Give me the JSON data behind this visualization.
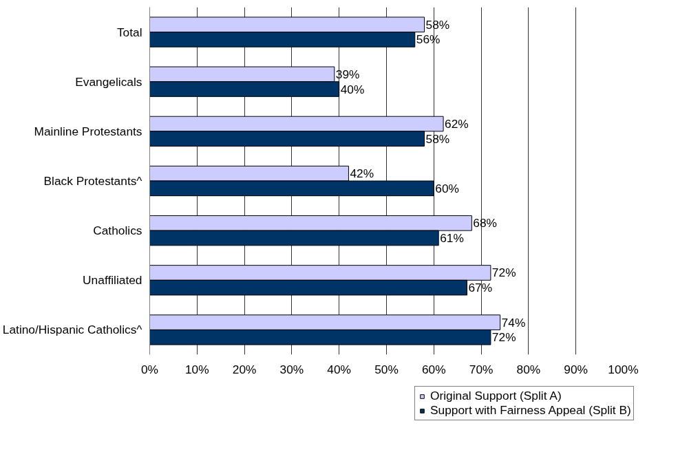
{
  "chart_data": {
    "type": "bar",
    "orientation": "horizontal",
    "categories": [
      "Total",
      "Evangelicals",
      "Mainline Protestants",
      "Black Protestants^",
      "Catholics",
      "Unaffiliated",
      "Latino/Hispanic Catholics^"
    ],
    "series": [
      {
        "name": "Original Support (Split A)",
        "color": "#ccccff",
        "values": [
          58,
          39,
          62,
          42,
          68,
          72,
          74
        ],
        "value_labels": [
          "58%",
          "39%",
          "62%",
          "42%",
          "68%",
          "72%",
          "74%"
        ]
      },
      {
        "name": "Support with Fairness Appeal (Split B)",
        "color": "#003366",
        "values": [
          56,
          40,
          58,
          60,
          61,
          67,
          72
        ],
        "value_labels": [
          "56%",
          "40%",
          "58%",
          "60%",
          "61%",
          "67%",
          "72%"
        ]
      }
    ],
    "xlim": [
      0,
      100
    ],
    "xticks": [
      {
        "value": 0,
        "label": "0%"
      },
      {
        "value": 10,
        "label": "10%"
      },
      {
        "value": 20,
        "label": "20%"
      },
      {
        "value": 30,
        "label": "30%"
      },
      {
        "value": 40,
        "label": "40%"
      },
      {
        "value": 50,
        "label": "50%"
      },
      {
        "value": 60,
        "label": "60%"
      },
      {
        "value": 70,
        "label": "70%"
      },
      {
        "value": 80,
        "label": "80%"
      },
      {
        "value": 90,
        "label": "90%"
      },
      {
        "value": 100,
        "label": "100%"
      }
    ],
    "grid": "x",
    "legend": "bottom"
  }
}
